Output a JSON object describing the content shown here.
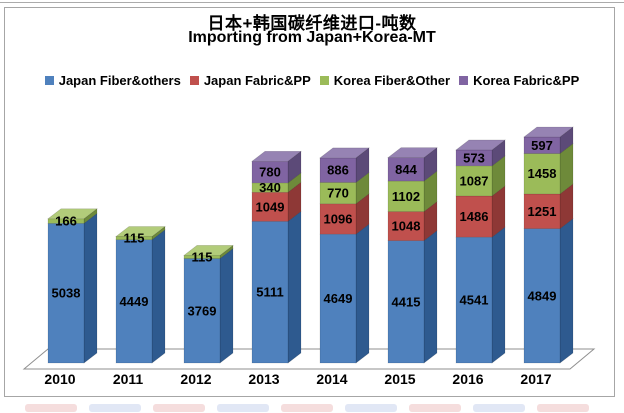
{
  "title": {
    "line1": "日本+韩国碳纤维进口-吨数",
    "line2": "Importing from Japan+Korea-MT"
  },
  "chart_data": {
    "type": "bar",
    "stacked": true,
    "style": "3d-column",
    "title": "日本+韩国碳纤维进口-吨数 (Importing from Japan+Korea-MT)",
    "xlabel": "",
    "ylabel": "",
    "value_axis_visible": false,
    "grid": false,
    "data_labels": true,
    "legend_position": "top",
    "categories": [
      "2010",
      "2011",
      "2012",
      "2013",
      "2014",
      "2015",
      "2016",
      "2017"
    ],
    "series": [
      {
        "name": "Japan Fiber&others",
        "color": "#4f81bd",
        "color_dark": "#2e5a8f",
        "color_top": "#7399c6",
        "values": [
          5038,
          4449,
          3769,
          5111,
          4649,
          4415,
          4541,
          4849
        ]
      },
      {
        "name": "Japan Fabric&PP",
        "color": "#c0504d",
        "color_dark": "#8e3836",
        "color_top": "#cd7572",
        "values": [
          0,
          0,
          0,
          1049,
          1096,
          1048,
          1486,
          1251
        ]
      },
      {
        "name": "Korea Fiber&Other",
        "color": "#9bbb59",
        "color_dark": "#6e8a3a",
        "color_top": "#b2cc7a",
        "values": [
          166,
          115,
          115,
          340,
          770,
          1102,
          1087,
          1458
        ]
      },
      {
        "name": "Korea Fabric&PP",
        "color": "#8064a2",
        "color_dark": "#5c4a78",
        "color_top": "#9683b3",
        "values": [
          0,
          0,
          0,
          780,
          886,
          844,
          573,
          597
        ]
      }
    ]
  },
  "floor_stroke_color": "#8f8f8f",
  "border_color": "#a6a6a6",
  "watermark_colors": [
    "#e9b4b4",
    "#bccae8"
  ]
}
